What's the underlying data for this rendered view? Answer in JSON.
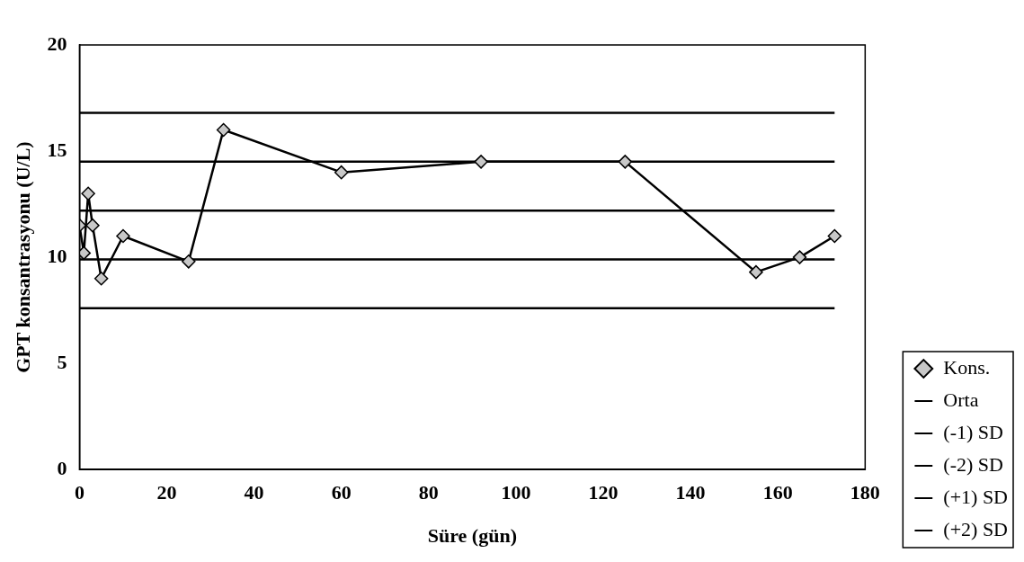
{
  "chart_data": {
    "type": "line",
    "xlabel": "Süre (gün)",
    "ylabel": "GPT konsantrasyonu (U/L)",
    "xlim": [
      0,
      180
    ],
    "xticks": [
      0,
      20,
      40,
      60,
      80,
      100,
      120,
      140,
      160,
      180
    ],
    "ylim": [
      0,
      20
    ],
    "yticks": [
      0,
      5,
      10,
      15,
      20
    ],
    "grid": false,
    "legend": "bottom right",
    "line_style": "solid",
    "marker": "diamond",
    "series": [
      {
        "name": "Kons.",
        "color": "#000000",
        "x": [
          0,
          1,
          2,
          3,
          5,
          10,
          25,
          33,
          60,
          92,
          125,
          155,
          165,
          173
        ],
        "values": [
          11.5,
          10.2,
          13.0,
          11.5,
          9.0,
          11.0,
          9.8,
          16.0,
          14.0,
          14.5,
          14.5,
          9.3,
          10.0,
          11.0
        ]
      },
      {
        "name": "Orta",
        "color": "#000000",
        "marker": "none",
        "x": [
          0,
          173
        ],
        "values": [
          12.2,
          12.2
        ]
      },
      {
        "name": "(-1) SD",
        "color": "#000000",
        "marker": "none",
        "x": [
          0,
          173
        ],
        "values": [
          9.9,
          9.9
        ]
      },
      {
        "name": "(-2) SD",
        "color": "#000000",
        "marker": "none",
        "x": [
          0,
          173
        ],
        "values": [
          7.6,
          7.6
        ]
      },
      {
        "name": "(+1) SD",
        "color": "#000000",
        "marker": "none",
        "x": [
          0,
          173
        ],
        "values": [
          14.5,
          14.5
        ]
      },
      {
        "name": "(+2) SD",
        "color": "#000000",
        "marker": "none",
        "x": [
          0,
          173
        ],
        "values": [
          16.8,
          16.8
        ]
      }
    ]
  }
}
